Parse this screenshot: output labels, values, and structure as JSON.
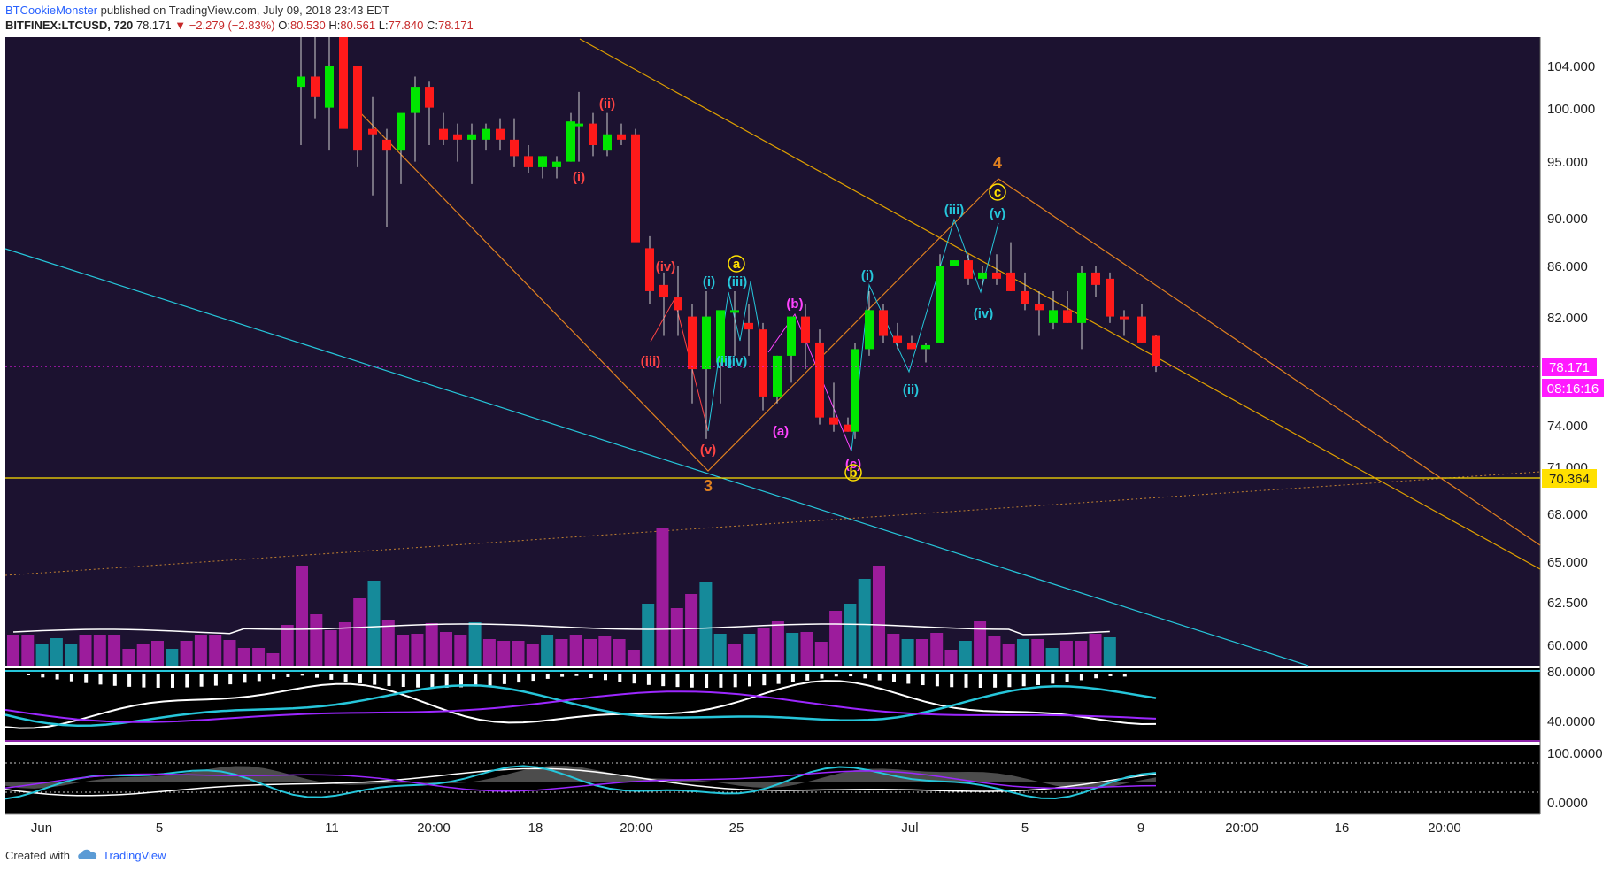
{
  "header": {
    "author": "BTCookieMonster",
    "published": "published on TradingView.com, July 09, 2018 23:43 EDT",
    "symbol": "BITFINEX:LTCUSD, 720",
    "last": "78.171",
    "change": "−2.279 (−2.83%)",
    "open_label": "O:",
    "open": "80.530",
    "high_label": "H:",
    "high": "80.561",
    "low_label": "L:",
    "low": "77.840",
    "close_label": "C:",
    "close": "78.171"
  },
  "colors": {
    "background": "#1c1230",
    "up": "#00e600",
    "down": "#ff1a1a",
    "price_label": "#ff1aff",
    "level_line": "#ffe000",
    "fib_line": "#e0a000",
    "blue_trend": "#26c6da"
  },
  "price_axis": {
    "ticks": [
      "104.000",
      "100.000",
      "95.000",
      "90.000",
      "86.000",
      "82.000",
      "78.171",
      "74.000",
      "71.000",
      "68.000",
      "65.000",
      "62.500",
      "60.000"
    ],
    "scale": "log"
  },
  "price_labels": {
    "last_price": "78.171",
    "countdown": "08:16:16",
    "level": "70.364"
  },
  "indicator_axis": {
    "panel1_ticks": [
      "80.0000",
      "40.0000"
    ],
    "panel2_ticks": [
      "100.0000",
      "0.0000"
    ]
  },
  "time_axis": {
    "ticks": [
      "Jun",
      "5",
      "11",
      "20:00",
      "18",
      "20:00",
      "25",
      "Jul",
      "5",
      "9",
      "20:00",
      "16",
      "20:00"
    ]
  },
  "waves": {
    "w1": "(i)",
    "w2": "(ii)",
    "w3": "(iii)",
    "w4": "(iv)",
    "w5": "(v)",
    "cyan_i": "(i)",
    "cyan_ii": "(ii)",
    "cyan_iii": "(iii)",
    "cyan_iv": "(iv)",
    "pink_a": "(a)",
    "pink_b": "(b)",
    "pink_c": "(c)",
    "cyan2_i": "(i)",
    "cyan2_ii": "(ii)",
    "cyan2_iii": "(iii)",
    "cyan2_iv": "(iv)",
    "cyan2_v": "(v)",
    "big3": "3",
    "big4": "4",
    "circ_a": "a",
    "circ_b": "b",
    "circ_c": "c"
  },
  "footer": {
    "created_with": "Created with",
    "brand": "TradingView"
  }
}
